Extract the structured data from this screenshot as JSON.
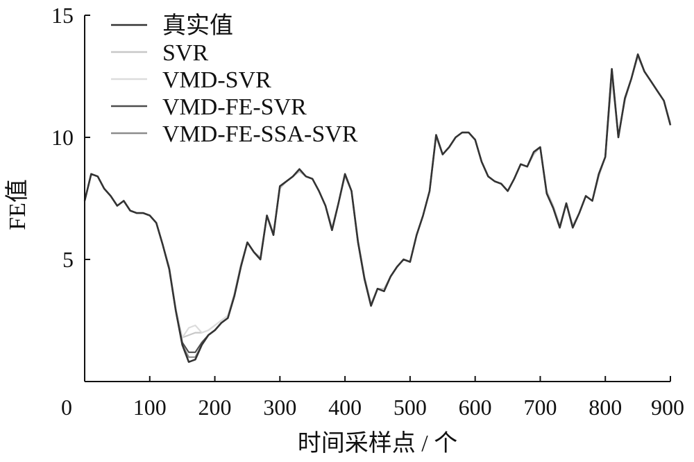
{
  "chart_data": {
    "type": "line",
    "title": "",
    "xlabel": "时间采样点 / 个",
    "ylabel": "FE值",
    "xlim": [
      0,
      900
    ],
    "ylim": [
      0,
      15
    ],
    "xticks": [
      0,
      100,
      200,
      300,
      400,
      500,
      600,
      700,
      800,
      900
    ],
    "yticks": [
      5,
      10,
      15
    ],
    "grid": false,
    "legend_position": "top-left",
    "x": [
      0,
      10,
      20,
      30,
      40,
      50,
      60,
      70,
      80,
      90,
      100,
      110,
      120,
      130,
      140,
      150,
      160,
      170,
      180,
      190,
      200,
      210,
      220,
      230,
      240,
      250,
      260,
      270,
      280,
      290,
      300,
      310,
      320,
      330,
      340,
      350,
      360,
      370,
      380,
      390,
      400,
      410,
      420,
      430,
      440,
      450,
      460,
      470,
      480,
      490,
      500,
      510,
      520,
      530,
      540,
      550,
      560,
      570,
      580,
      590,
      600,
      610,
      620,
      630,
      640,
      650,
      660,
      670,
      680,
      690,
      700,
      710,
      720,
      730,
      740,
      750,
      760,
      770,
      780,
      790,
      800,
      810,
      820,
      830,
      840,
      850,
      860,
      870,
      880,
      890,
      900
    ],
    "series": [
      {
        "name": "真实值",
        "color": "#333333",
        "values": [
          7.4,
          8.5,
          8.4,
          7.9,
          7.6,
          7.2,
          7.4,
          7.0,
          6.9,
          6.9,
          6.8,
          6.5,
          5.6,
          4.6,
          2.9,
          1.5,
          0.8,
          0.9,
          1.5,
          1.9,
          2.1,
          2.4,
          2.6,
          3.5,
          4.7,
          5.7,
          5.3,
          5.0,
          6.8,
          6.0,
          8.0,
          8.2,
          8.4,
          8.7,
          8.4,
          8.3,
          7.8,
          7.2,
          6.2,
          7.3,
          8.5,
          7.8,
          5.7,
          4.2,
          3.1,
          3.8,
          3.7,
          4.3,
          4.7,
          5.0,
          4.9,
          6.0,
          6.8,
          7.8,
          10.1,
          9.3,
          9.6,
          10.0,
          10.2,
          10.2,
          9.9,
          9.0,
          8.4,
          8.2,
          8.1,
          7.8,
          8.3,
          8.9,
          8.8,
          9.4,
          9.6,
          7.7,
          7.1,
          6.3,
          7.3,
          6.3,
          6.9,
          7.6,
          7.4,
          8.5,
          9.2,
          12.8,
          10.0,
          11.6,
          12.4,
          13.4,
          12.7,
          12.3,
          11.9,
          11.5,
          10.5
        ]
      },
      {
        "name": "SVR",
        "color": "#c7c7c7",
        "values": [
          7.4,
          8.5,
          8.4,
          7.9,
          7.6,
          7.2,
          7.4,
          7.0,
          6.9,
          6.9,
          6.8,
          6.5,
          5.6,
          4.7,
          3.0,
          1.8,
          1.9,
          2.0,
          2.0,
          2.1,
          2.3,
          2.5,
          2.7,
          3.6,
          4.8,
          5.7,
          5.3,
          5.1,
          6.8,
          6.1,
          7.9,
          8.2,
          8.4,
          8.6,
          8.4,
          8.3,
          7.8,
          7.2,
          6.3,
          7.3,
          8.4,
          7.8,
          5.8,
          4.3,
          3.2,
          3.8,
          3.8,
          4.3,
          4.7,
          5.0,
          4.9,
          6.0,
          6.8,
          7.8,
          10.0,
          9.3,
          9.6,
          10.0,
          10.2,
          10.2,
          9.9,
          9.0,
          8.4,
          8.2,
          8.1,
          7.8,
          8.3,
          8.9,
          8.8,
          9.3,
          9.6,
          7.8,
          7.2,
          6.4,
          7.3,
          6.4,
          6.9,
          7.6,
          7.4,
          8.4,
          9.2,
          12.4,
          10.1,
          11.5,
          12.4,
          13.3,
          12.7,
          12.3,
          11.9,
          11.5,
          10.6
        ]
      },
      {
        "name": "VMD-SVR",
        "color": "#dcdcdc",
        "values": [
          7.4,
          8.5,
          8.4,
          7.9,
          7.6,
          7.2,
          7.4,
          7.0,
          6.9,
          6.9,
          6.8,
          6.5,
          5.6,
          4.6,
          3.0,
          1.8,
          2.2,
          2.3,
          2.0,
          2.1,
          2.3,
          2.5,
          2.7,
          3.5,
          4.7,
          5.7,
          5.3,
          5.0,
          6.8,
          6.0,
          8.0,
          8.2,
          8.4,
          8.7,
          8.4,
          8.3,
          7.8,
          7.2,
          6.2,
          7.3,
          8.5,
          7.8,
          5.7,
          4.2,
          3.1,
          3.8,
          3.7,
          4.3,
          4.7,
          5.0,
          4.9,
          6.0,
          6.8,
          7.8,
          10.1,
          9.3,
          9.6,
          10.0,
          10.2,
          10.2,
          9.9,
          9.0,
          8.4,
          8.2,
          8.1,
          7.8,
          8.3,
          8.9,
          8.8,
          9.4,
          9.6,
          7.7,
          7.1,
          6.3,
          7.3,
          6.3,
          6.9,
          7.6,
          7.4,
          8.5,
          9.2,
          12.7,
          10.0,
          11.6,
          12.4,
          13.4,
          12.7,
          12.3,
          11.9,
          11.5,
          10.5
        ]
      },
      {
        "name": "VMD-FE-SVR",
        "color": "#4d4d4d",
        "values": [
          7.4,
          8.5,
          8.4,
          7.9,
          7.6,
          7.2,
          7.4,
          7.0,
          6.9,
          6.9,
          6.8,
          6.5,
          5.6,
          4.6,
          2.9,
          1.6,
          1.2,
          1.2,
          1.6,
          1.9,
          2.1,
          2.4,
          2.6,
          3.5,
          4.7,
          5.7,
          5.3,
          5.0,
          6.8,
          6.0,
          8.0,
          8.2,
          8.4,
          8.7,
          8.4,
          8.3,
          7.8,
          7.2,
          6.2,
          7.3,
          8.5,
          7.8,
          5.7,
          4.2,
          3.1,
          3.8,
          3.7,
          4.3,
          4.7,
          5.0,
          4.9,
          6.0,
          6.8,
          7.8,
          10.1,
          9.3,
          9.6,
          10.0,
          10.2,
          10.2,
          9.9,
          9.0,
          8.4,
          8.2,
          8.1,
          7.8,
          8.3,
          8.9,
          8.8,
          9.4,
          9.6,
          7.7,
          7.1,
          6.3,
          7.3,
          6.3,
          6.9,
          7.6,
          7.4,
          8.5,
          9.2,
          12.8,
          10.0,
          11.6,
          12.4,
          13.4,
          12.7,
          12.3,
          11.9,
          11.5,
          10.5
        ]
      },
      {
        "name": "VMD-FE-SSA-SVR",
        "color": "#8c8c8c",
        "values": [
          7.4,
          8.5,
          8.4,
          7.9,
          7.6,
          7.2,
          7.4,
          7.0,
          6.9,
          6.9,
          6.8,
          6.5,
          5.6,
          4.6,
          2.9,
          1.5,
          1.0,
          1.0,
          1.5,
          1.9,
          2.1,
          2.4,
          2.6,
          3.5,
          4.7,
          5.7,
          5.3,
          5.0,
          6.8,
          6.0,
          8.0,
          8.2,
          8.4,
          8.7,
          8.4,
          8.3,
          7.8,
          7.2,
          6.2,
          7.3,
          8.5,
          7.8,
          5.7,
          4.2,
          3.1,
          3.8,
          3.7,
          4.3,
          4.7,
          5.0,
          4.9,
          6.0,
          6.8,
          7.8,
          10.1,
          9.3,
          9.6,
          10.0,
          10.2,
          10.2,
          9.9,
          9.0,
          8.4,
          8.2,
          8.1,
          7.8,
          8.3,
          8.9,
          8.8,
          9.4,
          9.6,
          7.7,
          7.1,
          6.3,
          7.3,
          6.3,
          6.9,
          7.6,
          7.4,
          8.5,
          9.2,
          12.8,
          10.0,
          11.6,
          12.4,
          13.4,
          12.7,
          12.3,
          11.9,
          11.5,
          10.5
        ]
      }
    ]
  }
}
